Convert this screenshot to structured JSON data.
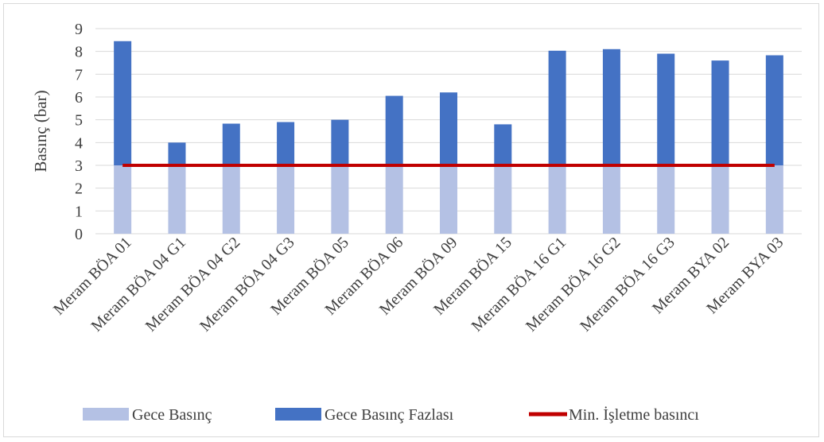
{
  "chart_data": {
    "type": "bar",
    "stacked": true,
    "title": "",
    "xlabel": "",
    "ylabel": "Basınç (bar)",
    "ylim": [
      0,
      9
    ],
    "yticks": [
      0,
      1,
      2,
      3,
      4,
      5,
      6,
      7,
      8,
      9
    ],
    "grid": true,
    "legend_position": "bottom",
    "categories": [
      "Meram BÖA 01",
      "Meram BÖA 04 G1",
      "Meram BÖA 04 G2",
      "Meram BÖA 04 G3",
      "Meram BÖA 05",
      "Meram BÖA 06",
      "Meram BÖA 09",
      "Meram BÖA 15",
      "Meram BÖA 16 G1",
      "Meram BÖA 16 G2",
      "Meram BÖA 16 G3",
      "Meram BYA 02",
      "Meram BYA 03"
    ],
    "series": [
      {
        "name": "Gece Basınç",
        "kind": "bar",
        "color": "#b4c1e4",
        "values": [
          3,
          3,
          3,
          3,
          3,
          3,
          3,
          3,
          3,
          3,
          3,
          3,
          3
        ]
      },
      {
        "name": "Gece Basınç Fazlası",
        "kind": "bar",
        "color": "#4472c4",
        "values": [
          5.45,
          1.0,
          1.83,
          1.9,
          2.0,
          3.05,
          3.2,
          1.8,
          5.03,
          5.1,
          4.9,
          4.6,
          4.83
        ]
      },
      {
        "name": "Min. İşletme basıncı",
        "kind": "line",
        "color": "#c00000",
        "values": [
          3,
          3,
          3,
          3,
          3,
          3,
          3,
          3,
          3,
          3,
          3,
          3,
          3
        ]
      }
    ]
  }
}
